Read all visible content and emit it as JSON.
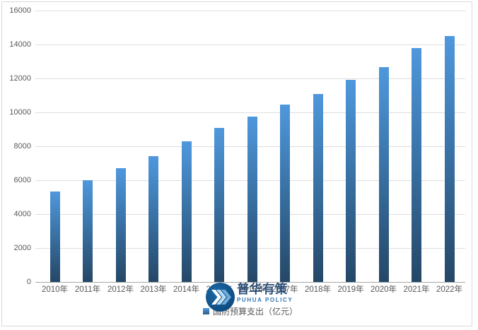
{
  "chart_data": {
    "type": "bar",
    "title": "",
    "categories": [
      "2010年",
      "2011年",
      "2012年",
      "2013年",
      "2014年",
      "2015年",
      "2016年",
      "2017年",
      "2018年",
      "2019年",
      "2020年",
      "2021年",
      "2022年"
    ],
    "series": [
      {
        "name": "国防预算支出（亿元）",
        "values": [
          5321,
          6011,
          6702,
          7406,
          8290,
          9088,
          9766,
          10444,
          11070,
          11899,
          12680,
          13795,
          14505
        ]
      }
    ],
    "xlabel": "",
    "ylabel": "",
    "ylim": [
      0,
      16000
    ],
    "yticks": [
      0,
      2000,
      4000,
      6000,
      8000,
      10000,
      12000,
      14000,
      16000
    ],
    "grid": "horizontal",
    "legend_position": "bottom",
    "bar_color_top": "#4f98dd",
    "bar_color_bottom": "#254766",
    "gridline_color": "#dedede",
    "axis_color": "#a8a8a8",
    "label_color": "#595959"
  },
  "legend": {
    "label": "国防预算支出（亿元）"
  },
  "watermark": {
    "cn": "普华有策",
    "en": "PUHUA POLICY"
  }
}
